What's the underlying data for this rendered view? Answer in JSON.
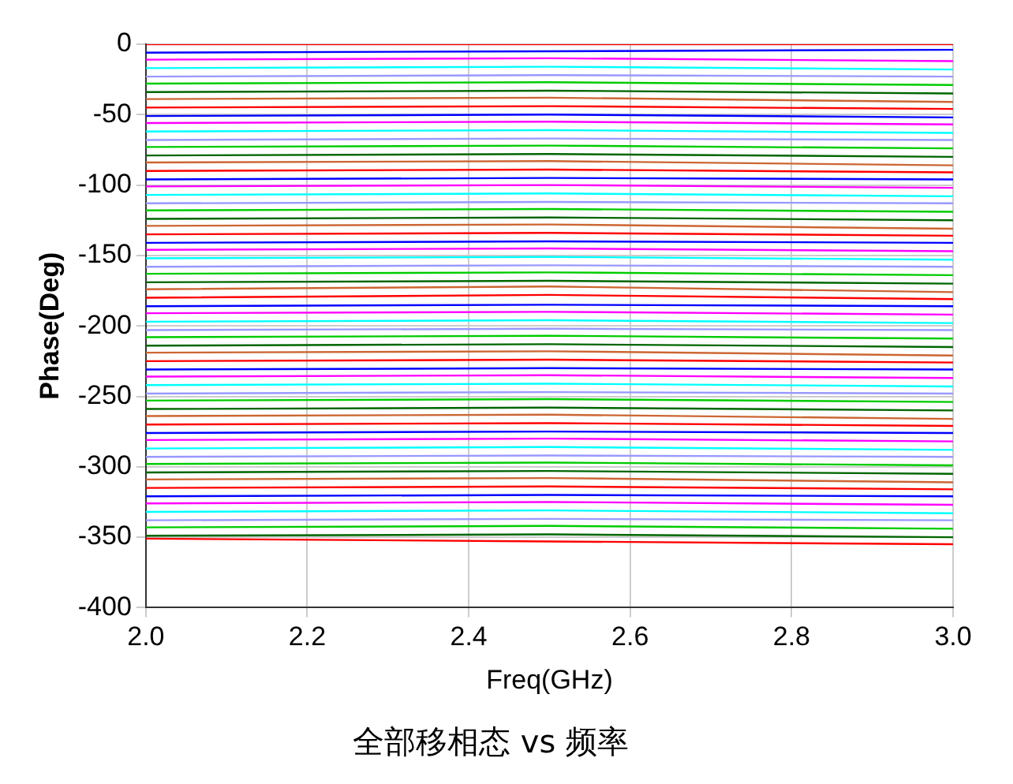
{
  "chart_data": {
    "type": "line",
    "title": "全部移相态 vs 频率",
    "xlabel": "Freq(GHz)",
    "ylabel": "Phase(Deg)",
    "x": [
      2.0,
      2.5,
      3.0
    ],
    "xlim": [
      2.0,
      3.0
    ],
    "xticks": [
      {
        "value": 2.0,
        "label": "2.0"
      },
      {
        "value": 2.2,
        "label": "2.2"
      },
      {
        "value": 2.4,
        "label": "2.4"
      },
      {
        "value": 2.6,
        "label": "2.6"
      },
      {
        "value": 2.8,
        "label": "2.8"
      },
      {
        "value": 3.0,
        "label": "3.0"
      }
    ],
    "ylim": [
      -400,
      0
    ],
    "yticks": [
      -400,
      -350,
      -300,
      -250,
      -200,
      -150,
      -100,
      -50,
      0
    ],
    "grid": true,
    "legend": false,
    "line_style": "solid",
    "marker": "none",
    "series": [
      {
        "color": "#ff0000",
        "values": [
          0,
          0,
          0
        ]
      },
      {
        "color": "#0000ff",
        "values": [
          -6,
          -5,
          -4
        ]
      },
      {
        "color": "#ff00ff",
        "values": [
          -11,
          -10,
          -12
        ]
      },
      {
        "color": "#00ffff",
        "values": [
          -17,
          -16,
          -18
        ]
      },
      {
        "color": "#9999ff",
        "values": [
          -23,
          -22,
          -23
        ]
      },
      {
        "color": "#00cc00",
        "values": [
          -28,
          -27,
          -29
        ]
      },
      {
        "color": "#006600",
        "values": [
          -34,
          -33,
          -35
        ]
      },
      {
        "color": "#cc6633",
        "values": [
          -39,
          -38,
          -41
        ]
      },
      {
        "color": "#ff0000",
        "values": [
          -45,
          -44,
          -46
        ]
      },
      {
        "color": "#0000ff",
        "values": [
          -51,
          -50,
          -52
        ]
      },
      {
        "color": "#ff00ff",
        "values": [
          -56,
          -55,
          -57
        ]
      },
      {
        "color": "#00ffff",
        "values": [
          -62,
          -61,
          -63
        ]
      },
      {
        "color": "#9999ff",
        "values": [
          -68,
          -67,
          -68
        ]
      },
      {
        "color": "#00cc00",
        "values": [
          -73,
          -72,
          -74
        ]
      },
      {
        "color": "#006600",
        "values": [
          -79,
          -78,
          -80
        ]
      },
      {
        "color": "#cc6633",
        "values": [
          -84,
          -83,
          -86
        ]
      },
      {
        "color": "#ff0000",
        "values": [
          -90,
          -89,
          -91
        ]
      },
      {
        "color": "#0000ff",
        "values": [
          -96,
          -95,
          -96
        ]
      },
      {
        "color": "#ff00ff",
        "values": [
          -101,
          -100,
          -102
        ]
      },
      {
        "color": "#00ffff",
        "values": [
          -107,
          -106,
          -108
        ]
      },
      {
        "color": "#9999ff",
        "values": [
          -113,
          -112,
          -113
        ]
      },
      {
        "color": "#00cc00",
        "values": [
          -118,
          -117,
          -119
        ]
      },
      {
        "color": "#006600",
        "values": [
          -124,
          -123,
          -125
        ]
      },
      {
        "color": "#cc6633",
        "values": [
          -129,
          -128,
          -131
        ]
      },
      {
        "color": "#ff0000",
        "values": [
          -135,
          -134,
          -136
        ]
      },
      {
        "color": "#0000ff",
        "values": [
          -141,
          -140,
          -141
        ]
      },
      {
        "color": "#ff00ff",
        "values": [
          -146,
          -145,
          -147
        ]
      },
      {
        "color": "#00ffff",
        "values": [
          -152,
          -151,
          -153
        ]
      },
      {
        "color": "#9999ff",
        "values": [
          -158,
          -157,
          -158
        ]
      },
      {
        "color": "#00cc00",
        "values": [
          -163,
          -162,
          -164
        ]
      },
      {
        "color": "#006600",
        "values": [
          -169,
          -168,
          -170
        ]
      },
      {
        "color": "#cc6633",
        "values": [
          -174,
          -172,
          -176
        ]
      },
      {
        "color": "#ff0000",
        "values": [
          -180,
          -178,
          -181
        ]
      },
      {
        "color": "#0000ff",
        "values": [
          -186,
          -185,
          -186
        ]
      },
      {
        "color": "#ff00ff",
        "values": [
          -191,
          -190,
          -192
        ]
      },
      {
        "color": "#00ffff",
        "values": [
          -197,
          -196,
          -198
        ]
      },
      {
        "color": "#9999ff",
        "values": [
          -203,
          -202,
          -203
        ]
      },
      {
        "color": "#00cc00",
        "values": [
          -208,
          -207,
          -209
        ]
      },
      {
        "color": "#006600",
        "values": [
          -214,
          -213,
          -215
        ]
      },
      {
        "color": "#cc6633",
        "values": [
          -219,
          -218,
          -221
        ]
      },
      {
        "color": "#ff0000",
        "values": [
          -225,
          -224,
          -226
        ]
      },
      {
        "color": "#0000ff",
        "values": [
          -231,
          -230,
          -231
        ]
      },
      {
        "color": "#ff00ff",
        "values": [
          -236,
          -235,
          -237
        ]
      },
      {
        "color": "#00ffff",
        "values": [
          -242,
          -241,
          -243
        ]
      },
      {
        "color": "#9999ff",
        "values": [
          -248,
          -247,
          -248
        ]
      },
      {
        "color": "#00cc00",
        "values": [
          -253,
          -252,
          -254
        ]
      },
      {
        "color": "#006600",
        "values": [
          -259,
          -258,
          -260
        ]
      },
      {
        "color": "#cc6633",
        "values": [
          -264,
          -263,
          -266
        ]
      },
      {
        "color": "#ff0000",
        "values": [
          -270,
          -269,
          -271
        ]
      },
      {
        "color": "#0000ff",
        "values": [
          -276,
          -275,
          -276
        ]
      },
      {
        "color": "#ff00ff",
        "values": [
          -281,
          -280,
          -282
        ]
      },
      {
        "color": "#00ffff",
        "values": [
          -287,
          -286,
          -288
        ]
      },
      {
        "color": "#9999ff",
        "values": [
          -293,
          -292,
          -293
        ]
      },
      {
        "color": "#00cc00",
        "values": [
          -298,
          -297,
          -299
        ]
      },
      {
        "color": "#006600",
        "values": [
          -304,
          -303,
          -305
        ]
      },
      {
        "color": "#cc6633",
        "values": [
          -309,
          -308,
          -311
        ]
      },
      {
        "color": "#ff0000",
        "values": [
          -315,
          -314,
          -316
        ]
      },
      {
        "color": "#0000ff",
        "values": [
          -321,
          -320,
          -321
        ]
      },
      {
        "color": "#ff00ff",
        "values": [
          -326,
          -325,
          -327
        ]
      },
      {
        "color": "#00ffff",
        "values": [
          -332,
          -331,
          -333
        ]
      },
      {
        "color": "#9999ff",
        "values": [
          -338,
          -337,
          -338
        ]
      },
      {
        "color": "#00cc00",
        "values": [
          -343,
          -342,
          -344
        ]
      },
      {
        "color": "#006600",
        "values": [
          -349,
          -348,
          -350
        ]
      },
      {
        "color": "#ff0000",
        "values": [
          -351,
          -353,
          -355
        ]
      }
    ]
  }
}
